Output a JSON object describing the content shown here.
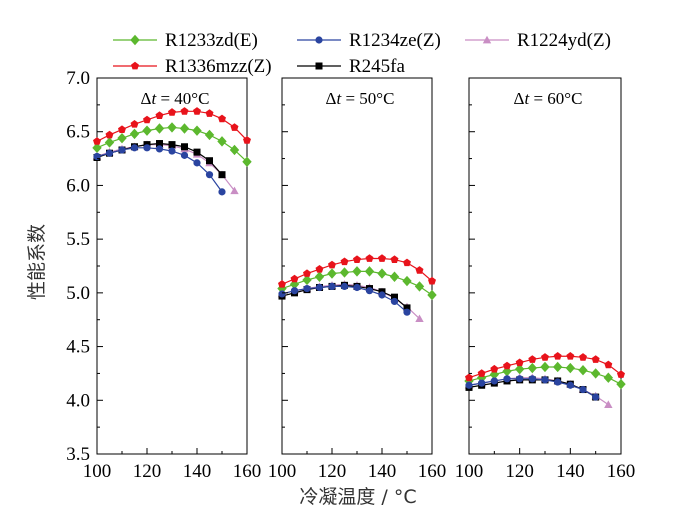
{
  "chart_data": {
    "type": "line",
    "ylabel": "性能系数",
    "xlabel": "冷凝温度 / °C",
    "xlim": [
      100,
      160
    ],
    "ylim": [
      3.5,
      7.0
    ],
    "x_ticks": [
      "100",
      "120",
      "140",
      "160"
    ],
    "y_ticks": [
      "3.5",
      "4.0",
      "4.5",
      "5.0",
      "5.5",
      "6.0",
      "6.5",
      "7.0"
    ],
    "legend_position": "top",
    "legend": [
      {
        "name": "R1233zd(E)",
        "color": "#5cb82e",
        "marker": "diamond"
      },
      {
        "name": "R1234ze(Z)",
        "color": "#2a44a0",
        "marker": "circle"
      },
      {
        "name": "R1224yd(Z)",
        "color": "#c98ec4",
        "marker": "triangle"
      },
      {
        "name": "R1336mzz(Z)",
        "color": "#e8131b",
        "marker": "pentagon"
      },
      {
        "name": "R245fa",
        "color": "#000000",
        "marker": "square"
      }
    ],
    "panels": [
      {
        "label_prefix": "Δ",
        "label_var": "t",
        "label_suffix": " = 40°C",
        "series": [
          {
            "name": "R1233zd(E)",
            "x": [
              100,
              105,
              110,
              115,
              120,
              125,
              130,
              135,
              140,
              145,
              150,
              155,
              160
            ],
            "y": [
              6.35,
              6.4,
              6.44,
              6.48,
              6.51,
              6.53,
              6.54,
              6.53,
              6.51,
              6.47,
              6.41,
              6.33,
              6.22
            ]
          },
          {
            "name": "R1336mzz(Z)",
            "x": [
              100,
              105,
              110,
              115,
              120,
              125,
              130,
              135,
              140,
              145,
              150,
              155,
              160
            ],
            "y": [
              6.41,
              6.47,
              6.52,
              6.57,
              6.61,
              6.65,
              6.68,
              6.69,
              6.69,
              6.67,
              6.62,
              6.54,
              6.42
            ]
          },
          {
            "name": "R1234ze(Z)",
            "x": [
              100,
              105,
              110,
              115,
              120,
              125,
              130,
              135,
              140,
              145,
              150
            ],
            "y": [
              6.27,
              6.3,
              6.33,
              6.35,
              6.35,
              6.34,
              6.32,
              6.28,
              6.21,
              6.1,
              5.94
            ]
          },
          {
            "name": "R1224yd(Z)",
            "x": [
              100,
              105,
              110,
              115,
              120,
              125,
              130,
              135,
              140,
              145,
              150,
              155
            ],
            "y": [
              6.27,
              6.31,
              6.34,
              6.36,
              6.38,
              6.38,
              6.37,
              6.34,
              6.29,
              6.21,
              6.1,
              5.95
            ]
          },
          {
            "name": "R245fa",
            "x": [
              100,
              105,
              110,
              115,
              120,
              125,
              130,
              135,
              140,
              145,
              150
            ],
            "y": [
              6.26,
              6.3,
              6.33,
              6.36,
              6.38,
              6.39,
              6.38,
              6.36,
              6.31,
              6.23,
              6.1
            ]
          }
        ]
      },
      {
        "label_prefix": "Δ",
        "label_var": "t",
        "label_suffix": " = 50°C",
        "series": [
          {
            "name": "R1233zd(E)",
            "x": [
              100,
              105,
              110,
              115,
              120,
              125,
              130,
              135,
              140,
              145,
              150,
              155,
              160
            ],
            "y": [
              5.04,
              5.08,
              5.12,
              5.15,
              5.18,
              5.19,
              5.2,
              5.2,
              5.18,
              5.15,
              5.11,
              5.06,
              4.98
            ]
          },
          {
            "name": "R1336mzz(Z)",
            "x": [
              100,
              105,
              110,
              115,
              120,
              125,
              130,
              135,
              140,
              145,
              150,
              155,
              160
            ],
            "y": [
              5.08,
              5.13,
              5.18,
              5.22,
              5.26,
              5.29,
              5.31,
              5.32,
              5.32,
              5.31,
              5.28,
              5.21,
              5.11
            ]
          },
          {
            "name": "R1234ze(Z)",
            "x": [
              100,
              105,
              110,
              115,
              120,
              125,
              130,
              135,
              140,
              145,
              150
            ],
            "y": [
              4.99,
              5.02,
              5.04,
              5.05,
              5.06,
              5.06,
              5.05,
              5.02,
              4.98,
              4.92,
              4.82
            ]
          },
          {
            "name": "R1224yd(Z)",
            "x": [
              100,
              105,
              110,
              115,
              120,
              125,
              130,
              135,
              140,
              145,
              150,
              155
            ],
            "y": [
              4.99,
              5.02,
              5.04,
              5.06,
              5.07,
              5.08,
              5.07,
              5.05,
              5.01,
              4.95,
              4.87,
              4.76
            ]
          },
          {
            "name": "R245fa",
            "x": [
              100,
              105,
              110,
              115,
              120,
              125,
              130,
              135,
              140,
              145,
              150
            ],
            "y": [
              4.97,
              5.0,
              5.03,
              5.05,
              5.06,
              5.07,
              5.06,
              5.04,
              5.01,
              4.96,
              4.86
            ]
          }
        ]
      },
      {
        "label_prefix": "Δ",
        "label_var": "t",
        "label_suffix": " = 60°C",
        "series": [
          {
            "name": "R1233zd(E)",
            "x": [
              100,
              105,
              110,
              115,
              120,
              125,
              130,
              135,
              140,
              145,
              150,
              155,
              160
            ],
            "y": [
              4.18,
              4.21,
              4.24,
              4.27,
              4.29,
              4.3,
              4.31,
              4.31,
              4.3,
              4.28,
              4.25,
              4.21,
              4.15
            ]
          },
          {
            "name": "R1336mzz(Z)",
            "x": [
              100,
              105,
              110,
              115,
              120,
              125,
              130,
              135,
              140,
              145,
              150,
              155,
              160
            ],
            "y": [
              4.21,
              4.25,
              4.29,
              4.32,
              4.35,
              4.38,
              4.4,
              4.41,
              4.41,
              4.4,
              4.38,
              4.33,
              4.24
            ]
          },
          {
            "name": "R1234ze(Z)",
            "x": [
              100,
              105,
              110,
              115,
              120,
              125,
              130,
              135,
              140,
              145,
              150
            ],
            "y": [
              4.14,
              4.16,
              4.18,
              4.2,
              4.2,
              4.2,
              4.19,
              4.17,
              4.14,
              4.1,
              4.03
            ]
          },
          {
            "name": "R1224yd(Z)",
            "x": [
              100,
              105,
              110,
              115,
              120,
              125,
              130,
              135,
              140,
              145,
              150,
              155
            ],
            "y": [
              4.14,
              4.16,
              4.18,
              4.2,
              4.21,
              4.21,
              4.2,
              4.18,
              4.15,
              4.1,
              4.04,
              3.96
            ]
          },
          {
            "name": "R245fa",
            "x": [
              100,
              105,
              110,
              115,
              120,
              125,
              130,
              135,
              140,
              145,
              150
            ],
            "y": [
              4.12,
              4.14,
              4.16,
              4.18,
              4.19,
              4.19,
              4.19,
              4.18,
              4.15,
              4.1,
              4.03
            ]
          }
        ]
      }
    ]
  }
}
